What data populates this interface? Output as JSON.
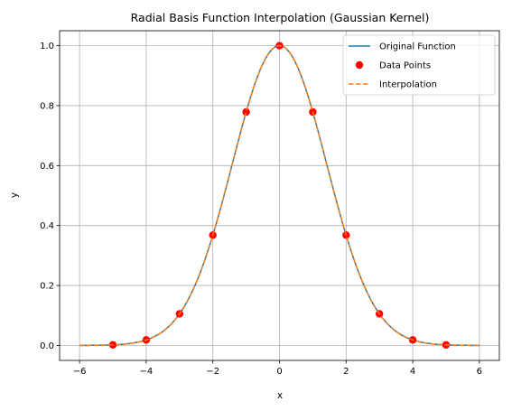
{
  "chart_data": {
    "type": "line",
    "title": "Radial Basis Function Interpolation (Gaussian Kernel)",
    "xlabel": "x",
    "ylabel": "y",
    "xlim": [
      -6.6,
      6.6
    ],
    "ylim": [
      -0.05,
      1.05
    ],
    "xticks": [
      -6,
      -4,
      -2,
      0,
      2,
      4,
      6
    ],
    "xtick_labels": [
      "−6",
      "−4",
      "−2",
      "0",
      "2",
      "4",
      "6"
    ],
    "yticks": [
      0.0,
      0.2,
      0.4,
      0.6,
      0.8,
      1.0
    ],
    "ytick_labels": [
      "0.0",
      "0.2",
      "0.4",
      "0.6",
      "0.8",
      "1.0"
    ],
    "grid": true,
    "legend_position": "top-right",
    "series": [
      {
        "name": "Original Function",
        "kind": "line",
        "style": "solid",
        "color": "#1f77b4",
        "x_range": [
          -6,
          6
        ],
        "function": "exp(-x^2/4)"
      },
      {
        "name": "Data Points",
        "kind": "scatter",
        "color": "#ff0000",
        "x": [
          -5,
          -4,
          -3,
          -2,
          -1,
          0,
          1,
          2,
          3,
          4,
          5
        ],
        "y": [
          0.0019,
          0.0183,
          0.1054,
          0.3679,
          0.7788,
          1.0,
          0.7788,
          0.3679,
          0.1054,
          0.0183,
          0.0019
        ]
      },
      {
        "name": "Interpolation",
        "kind": "line",
        "style": "dashed",
        "color": "#ff7f0e",
        "x_range": [
          -6,
          6
        ],
        "function": "exp(-x^2/4)"
      }
    ]
  }
}
